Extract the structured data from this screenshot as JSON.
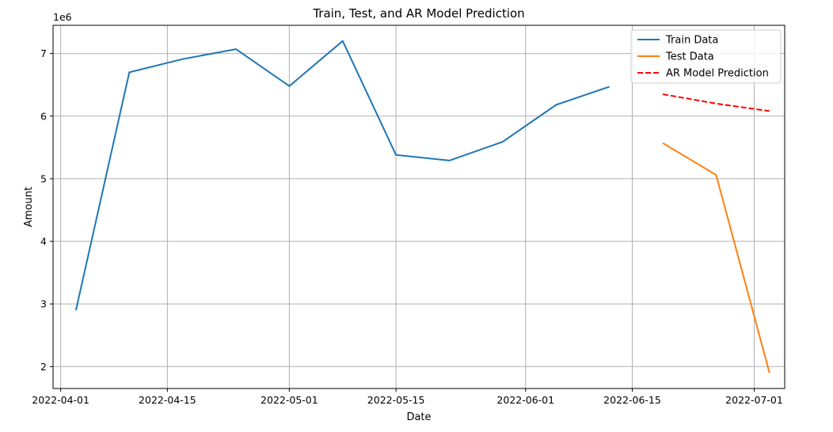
{
  "chart_data": {
    "type": "line",
    "title": "Train, Test, and AR Model Prediction",
    "xlabel": "Date",
    "ylabel": "Amount",
    "y_scale_label": "1e6",
    "xlim": [
      "2022-03-31",
      "2022-07-05"
    ],
    "ylim": [
      1.65,
      7.45
    ],
    "x_ticks": [
      {
        "date": "2022-04-01",
        "label": "2022-04-01"
      },
      {
        "date": "2022-04-15",
        "label": "2022-04-15"
      },
      {
        "date": "2022-05-01",
        "label": "2022-05-01"
      },
      {
        "date": "2022-05-15",
        "label": "2022-05-15"
      },
      {
        "date": "2022-06-01",
        "label": "2022-06-01"
      },
      {
        "date": "2022-06-15",
        "label": "2022-06-15"
      },
      {
        "date": "2022-07-01",
        "label": "2022-07-01"
      }
    ],
    "y_ticks": [
      {
        "value": 2,
        "label": "2"
      },
      {
        "value": 3,
        "label": "3"
      },
      {
        "value": 4,
        "label": "4"
      },
      {
        "value": 5,
        "label": "5"
      },
      {
        "value": 6,
        "label": "6"
      },
      {
        "value": 7,
        "label": "7"
      }
    ],
    "grid": true,
    "legend_position": "top-right",
    "series": [
      {
        "name": "Train Data",
        "color": "#1f77b4",
        "style": "solid",
        "points": [
          {
            "x": "2022-04-03",
            "y": 2.9
          },
          {
            "x": "2022-04-10",
            "y": 6.7
          },
          {
            "x": "2022-04-17",
            "y": 6.91
          },
          {
            "x": "2022-04-24",
            "y": 7.07
          },
          {
            "x": "2022-05-01",
            "y": 6.48
          },
          {
            "x": "2022-05-08",
            "y": 7.2
          },
          {
            "x": "2022-05-15",
            "y": 5.38
          },
          {
            "x": "2022-05-22",
            "y": 5.29
          },
          {
            "x": "2022-05-29",
            "y": 5.59
          },
          {
            "x": "2022-06-05",
            "y": 6.18
          },
          {
            "x": "2022-06-12",
            "y": 6.47
          }
        ]
      },
      {
        "name": "Test Data",
        "color": "#ff7f0e",
        "style": "solid",
        "points": [
          {
            "x": "2022-06-19",
            "y": 5.57
          },
          {
            "x": "2022-06-26",
            "y": 5.06
          },
          {
            "x": "2022-07-03",
            "y": 1.9
          }
        ]
      },
      {
        "name": "AR Model Prediction",
        "color": "#ff0000",
        "style": "dashed",
        "points": [
          {
            "x": "2022-06-19",
            "y": 6.35
          },
          {
            "x": "2022-06-26",
            "y": 6.2
          },
          {
            "x": "2022-07-03",
            "y": 6.08
          }
        ]
      }
    ]
  }
}
